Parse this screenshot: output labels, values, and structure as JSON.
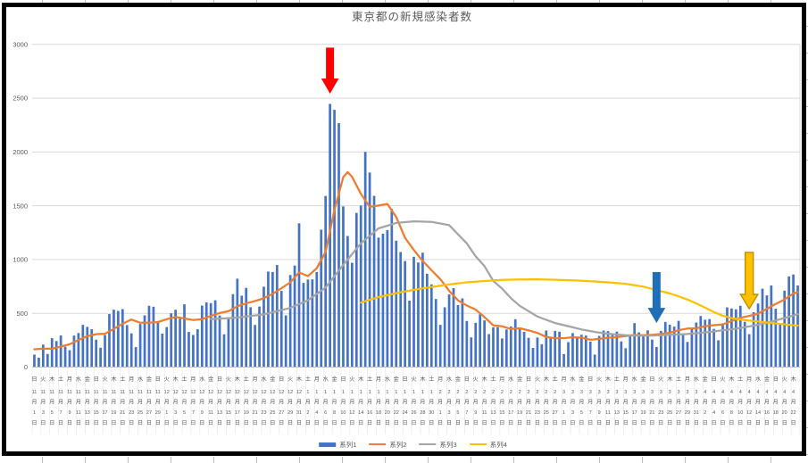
{
  "title": "東京都の新規感染者数",
  "chart_data": {
    "type": "combo",
    "title": "東京都の新規感染者数",
    "ylim": [
      0,
      3000
    ],
    "y_ticks": [
      0,
      500,
      1000,
      1500,
      2000,
      2500,
      3000
    ],
    "x_start_date": "11月1日(日)",
    "x_end_date": "4月23日(金)",
    "x_label_every_n_days": 2,
    "x_suffix_month": "月",
    "x_suffix_day": "日",
    "x_labels": [
      [
        "日",
        11,
        1
      ],
      [
        "火",
        11,
        3
      ],
      [
        "木",
        11,
        5
      ],
      [
        "土",
        11,
        7
      ],
      [
        "月",
        11,
        9
      ],
      [
        "水",
        11,
        11
      ],
      [
        "金",
        11,
        13
      ],
      [
        "日",
        11,
        15
      ],
      [
        "火",
        11,
        17
      ],
      [
        "木",
        11,
        19
      ],
      [
        "土",
        11,
        21
      ],
      [
        "月",
        11,
        23
      ],
      [
        "水",
        11,
        25
      ],
      [
        "金",
        11,
        27
      ],
      [
        "日",
        11,
        29
      ],
      [
        "火",
        12,
        1
      ],
      [
        "木",
        12,
        3
      ],
      [
        "土",
        12,
        5
      ],
      [
        "月",
        12,
        7
      ],
      [
        "水",
        12,
        9
      ],
      [
        "金",
        12,
        11
      ],
      [
        "日",
        12,
        13
      ],
      [
        "火",
        12,
        15
      ],
      [
        "木",
        12,
        17
      ],
      [
        "土",
        12,
        19
      ],
      [
        "月",
        12,
        21
      ],
      [
        "水",
        12,
        23
      ],
      [
        "金",
        12,
        25
      ],
      [
        "日",
        12,
        27
      ],
      [
        "火",
        12,
        29
      ],
      [
        "木",
        12,
        31
      ],
      [
        "土",
        1,
        2
      ],
      [
        "月",
        1,
        4
      ],
      [
        "水",
        1,
        6
      ],
      [
        "金",
        1,
        8
      ],
      [
        "日",
        1,
        10
      ],
      [
        "火",
        1,
        12
      ],
      [
        "木",
        1,
        14
      ],
      [
        "土",
        1,
        16
      ],
      [
        "月",
        1,
        18
      ],
      [
        "水",
        1,
        20
      ],
      [
        "金",
        1,
        22
      ],
      [
        "日",
        1,
        24
      ],
      [
        "火",
        1,
        26
      ],
      [
        "木",
        1,
        28
      ],
      [
        "土",
        1,
        30
      ],
      [
        "月",
        2,
        1
      ],
      [
        "水",
        2,
        3
      ],
      [
        "金",
        2,
        5
      ],
      [
        "日",
        2,
        7
      ],
      [
        "火",
        2,
        9
      ],
      [
        "木",
        2,
        11
      ],
      [
        "土",
        2,
        13
      ],
      [
        "月",
        2,
        15
      ],
      [
        "水",
        2,
        17
      ],
      [
        "金",
        2,
        19
      ],
      [
        "日",
        2,
        21
      ],
      [
        "火",
        2,
        23
      ],
      [
        "木",
        2,
        25
      ],
      [
        "土",
        2,
        27
      ],
      [
        "月",
        3,
        1
      ],
      [
        "水",
        3,
        3
      ],
      [
        "金",
        3,
        5
      ],
      [
        "日",
        3,
        7
      ],
      [
        "火",
        3,
        9
      ],
      [
        "木",
        3,
        11
      ],
      [
        "土",
        3,
        13
      ],
      [
        "月",
        3,
        15
      ],
      [
        "水",
        3,
        17
      ],
      [
        "金",
        3,
        19
      ],
      [
        "日",
        3,
        21
      ],
      [
        "火",
        3,
        23
      ],
      [
        "木",
        3,
        25
      ],
      [
        "土",
        3,
        27
      ],
      [
        "月",
        3,
        29
      ],
      [
        "水",
        3,
        31
      ],
      [
        "金",
        4,
        2
      ],
      [
        "日",
        4,
        4
      ],
      [
        "火",
        4,
        6
      ],
      [
        "木",
        4,
        8
      ],
      [
        "土",
        4,
        10
      ],
      [
        "月",
        4,
        12
      ],
      [
        "水",
        4,
        14
      ],
      [
        "金",
        4,
        16
      ],
      [
        "日",
        4,
        18
      ],
      [
        "火",
        4,
        20
      ],
      [
        "木",
        4,
        22
      ]
    ],
    "series": [
      {
        "name": "系列1",
        "type": "bar",
        "color": "#4472C4",
        "values": [
          116,
          87,
          209,
          122,
          269,
          242,
          294,
          189,
          157,
          293,
          317,
          393,
          374,
          352,
          255,
          180,
          298,
          493,
          534,
          522,
          539,
          391,
          314,
          186,
          401,
          481,
          570,
          561,
          418,
          311,
          372,
          500,
          533,
          449,
          584,
          327,
          299,
          352,
          572,
          602,
          595,
          621,
          480,
          305,
          460,
          678,
          822,
          664,
          736,
          556,
          392,
          563,
          748,
          888,
          884,
          949,
          708,
          481,
          856,
          944,
          1337,
          783,
          814,
          816,
          884,
          1278,
          1591,
          2447,
          2392,
          2268,
          1494,
          1219,
          970,
          1433,
          1502,
          2001,
          1809,
          1592,
          1204,
          1240,
          1274,
          1471,
          1175,
          1070,
          986,
          618,
          1026,
          973,
          1064,
          868,
          769,
          633,
          393,
          556,
          676,
          734,
          577,
          639,
          429,
          276,
          412,
          491,
          434,
          307,
          369,
          371,
          266,
          350,
          378,
          445,
          353,
          327,
          272,
          178,
          275,
          213,
          340,
          270,
          337,
          329,
          121,
          232,
          316,
          279,
          301,
          293,
          237,
          116,
          290,
          340,
          335,
          304,
          330,
          239,
          175,
          300,
          409,
          323,
          303,
          342,
          256,
          187,
          337,
          420,
          394,
          376,
          430,
          313,
          234,
          364,
          414,
          475,
          440,
          446,
          355,
          249,
          399,
          555,
          545,
          537,
          570,
          421,
          306,
          510,
          591,
          729,
          667,
          759,
          543,
          405,
          711,
          843,
          861,
          759
        ]
      },
      {
        "name": "系列2",
        "type": "line",
        "color": "#ED7D31",
        "points": [
          [
            0,
            166
          ],
          [
            2,
            171
          ],
          [
            4,
            171
          ],
          [
            6,
            191
          ],
          [
            8,
            212
          ],
          [
            10,
            252
          ],
          [
            12,
            288
          ],
          [
            14,
            306
          ],
          [
            16,
            310
          ],
          [
            18,
            355
          ],
          [
            20,
            403
          ],
          [
            22,
            442
          ],
          [
            24,
            412
          ],
          [
            26,
            412
          ],
          [
            28,
            419
          ],
          [
            30,
            445
          ],
          [
            32,
            466
          ],
          [
            34,
            452
          ],
          [
            36,
            438
          ],
          [
            38,
            445
          ],
          [
            40,
            476
          ],
          [
            42,
            503
          ],
          [
            44,
            519
          ],
          [
            46,
            566
          ],
          [
            48,
            592
          ],
          [
            50,
            615
          ],
          [
            52,
            640
          ],
          [
            54,
            681
          ],
          [
            56,
            733
          ],
          [
            58,
            788
          ],
          [
            60,
            880
          ],
          [
            62,
            846
          ],
          [
            64,
            919
          ],
          [
            66,
            1072
          ],
          [
            68,
            1460
          ],
          [
            70,
            1765
          ],
          [
            71,
            1813
          ],
          [
            72,
            1769
          ],
          [
            74,
            1611
          ],
          [
            76,
            1490
          ],
          [
            78,
            1502
          ],
          [
            80,
            1517
          ],
          [
            82,
            1395
          ],
          [
            84,
            1203
          ],
          [
            86,
            1089
          ],
          [
            88,
            987
          ],
          [
            90,
            901
          ],
          [
            92,
            818
          ],
          [
            94,
            708
          ],
          [
            96,
            620
          ],
          [
            98,
            572
          ],
          [
            100,
            535
          ],
          [
            102,
            465
          ],
          [
            104,
            388
          ],
          [
            106,
            379
          ],
          [
            108,
            354
          ],
          [
            110,
            362
          ],
          [
            112,
            342
          ],
          [
            114,
            318
          ],
          [
            116,
            280
          ],
          [
            118,
            269
          ],
          [
            120,
            269
          ],
          [
            122,
            278
          ],
          [
            124,
            274
          ],
          [
            126,
            254
          ],
          [
            128,
            262
          ],
          [
            130,
            273
          ],
          [
            132,
            279
          ],
          [
            134,
            288
          ],
          [
            136,
            299
          ],
          [
            138,
            297
          ],
          [
            140,
            301
          ],
          [
            142,
            308
          ],
          [
            144,
            320
          ],
          [
            146,
            343
          ],
          [
            148,
            358
          ],
          [
            150,
            361
          ],
          [
            152,
            381
          ],
          [
            154,
            390
          ],
          [
            156,
            397
          ],
          [
            158,
            427
          ],
          [
            160,
            459
          ],
          [
            162,
            476
          ],
          [
            164,
            497
          ],
          [
            166,
            542
          ],
          [
            168,
            586
          ],
          [
            170,
            629
          ],
          [
            172,
            684
          ],
          [
            173,
            697
          ]
        ]
      },
      {
        "name": "系列3",
        "type": "line",
        "color": "#A5A5A5",
        "points": [
          [
            40,
            445
          ],
          [
            46,
            460
          ],
          [
            52,
            490
          ],
          [
            58,
            550
          ],
          [
            62,
            620
          ],
          [
            66,
            740
          ],
          [
            70,
            950
          ],
          [
            74,
            1150
          ],
          [
            78,
            1290
          ],
          [
            82,
            1340
          ],
          [
            86,
            1355
          ],
          [
            90,
            1350
          ],
          [
            94,
            1320
          ],
          [
            98,
            1150
          ],
          [
            100,
            1030
          ],
          [
            102,
            940
          ],
          [
            104,
            800
          ],
          [
            106,
            730
          ],
          [
            108,
            640
          ],
          [
            110,
            570
          ],
          [
            112,
            520
          ],
          [
            114,
            470
          ],
          [
            116,
            440
          ],
          [
            118,
            410
          ],
          [
            120,
            390
          ],
          [
            122,
            370
          ],
          [
            124,
            350
          ],
          [
            126,
            335
          ],
          [
            128,
            320
          ],
          [
            130,
            310
          ],
          [
            132,
            303
          ],
          [
            134,
            297
          ],
          [
            136,
            294
          ],
          [
            138,
            293
          ],
          [
            140,
            294
          ],
          [
            142,
            297
          ],
          [
            144,
            300
          ],
          [
            146,
            303
          ],
          [
            148,
            308
          ],
          [
            150,
            315
          ],
          [
            152,
            323
          ],
          [
            154,
            332
          ],
          [
            156,
            342
          ],
          [
            158,
            352
          ],
          [
            160,
            364
          ],
          [
            162,
            378
          ],
          [
            164,
            394
          ],
          [
            166,
            412
          ],
          [
            168,
            434
          ],
          [
            170,
            456
          ],
          [
            172,
            480
          ],
          [
            173,
            492
          ]
        ]
      },
      {
        "name": "系列4",
        "type": "line",
        "color": "#FFC000",
        "points": [
          [
            74,
            600
          ],
          [
            78,
            650
          ],
          [
            82,
            688
          ],
          [
            86,
            718
          ],
          [
            90,
            745
          ],
          [
            94,
            768
          ],
          [
            98,
            788
          ],
          [
            102,
            800
          ],
          [
            106,
            810
          ],
          [
            110,
            815
          ],
          [
            114,
            816
          ],
          [
            118,
            812
          ],
          [
            122,
            806
          ],
          [
            126,
            798
          ],
          [
            130,
            788
          ],
          [
            134,
            775
          ],
          [
            138,
            748
          ],
          [
            142,
            705
          ],
          [
            144,
            685
          ],
          [
            146,
            658
          ],
          [
            148,
            628
          ],
          [
            150,
            592
          ],
          [
            152,
            552
          ],
          [
            154,
            512
          ],
          [
            156,
            478
          ],
          [
            158,
            455
          ],
          [
            160,
            442
          ],
          [
            162,
            432
          ],
          [
            164,
            424
          ],
          [
            166,
            415
          ],
          [
            168,
            406
          ],
          [
            170,
            397
          ],
          [
            172,
            389
          ],
          [
            173,
            386
          ]
        ]
      }
    ]
  },
  "annotations": [
    {
      "name": "red-arrow",
      "color": "#FF0000",
      "stroke": "",
      "day_index": 67,
      "v_top": 2970,
      "v_head": 2683,
      "v_tip": 2542
    },
    {
      "name": "blue-arrow",
      "color": "#1F6FB8",
      "stroke": "",
      "day_index": 141,
      "v_top": 883,
      "v_head": 551,
      "v_tip": 410
    },
    {
      "name": "yellow-arrow",
      "color": "#FFC000",
      "stroke": "#BF9000",
      "day_index": 162,
      "v_top": 1066,
      "v_head": 676,
      "v_tip": 543
    }
  ],
  "axis_colors": {
    "grid": "#D9D9D9",
    "axis_line": "#BFBFBF",
    "tick_text": "#595959",
    "separator": "#E4E4E4"
  }
}
